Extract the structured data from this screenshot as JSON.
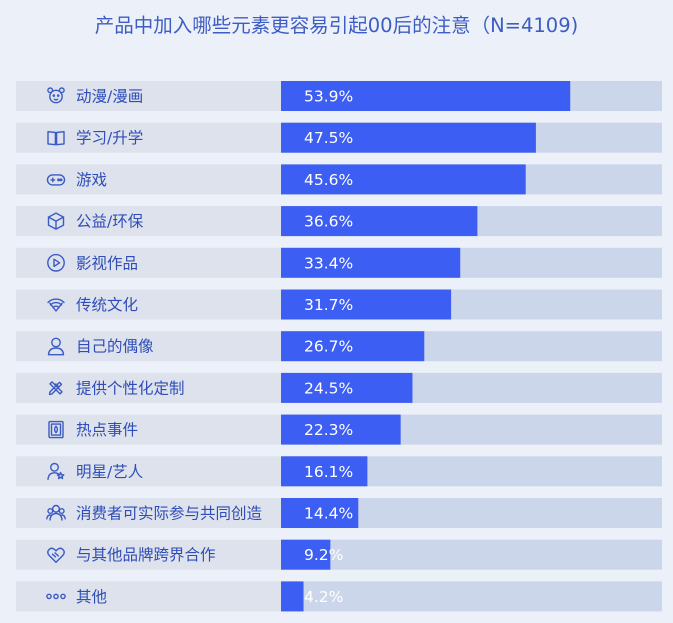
{
  "chart_data": {
    "type": "bar",
    "orientation": "horizontal",
    "title": "产品中加入哪些元素更容易引起00后的注意（N=4109)",
    "categories": [
      "动漫/漫画",
      "学习/升学",
      "游戏",
      "公益/环保",
      "影视作品",
      "传统文化",
      "自己的偶像",
      "提供个性化定制",
      "热点事件",
      "明星/艺人",
      "消费者可实际参与共同创造",
      "与其他品牌跨界合作",
      "其他"
    ],
    "icons": [
      "bear-icon",
      "book-icon",
      "gamepad-icon",
      "cube-icon",
      "play-icon",
      "fan-icon",
      "person-icon",
      "pencil-ruler-icon",
      "news-icon",
      "star-person-icon",
      "group-icon",
      "handshake-icon",
      "dots-icon"
    ],
    "values": [
      53.9,
      47.5,
      45.6,
      36.6,
      33.4,
      31.7,
      26.7,
      24.5,
      22.3,
      16.1,
      14.4,
      9.2,
      4.2
    ],
    "value_labels": [
      "53.9%",
      "47.5%",
      "45.6%",
      "36.6%",
      "33.4%",
      "31.7%",
      "26.7%",
      "24.5%",
      "22.3%",
      "16.1%",
      "14.4%",
      "9.2%",
      "4.2%"
    ],
    "xlim": [
      0,
      71
    ],
    "grid": false,
    "colors": {
      "bar": "#3D5EF2",
      "track": "#CBD6EA",
      "label_band": "#DDE2EC",
      "text": "#2F4DB8",
      "title": "#3E5DC4",
      "background": "#ECF0F8"
    }
  }
}
